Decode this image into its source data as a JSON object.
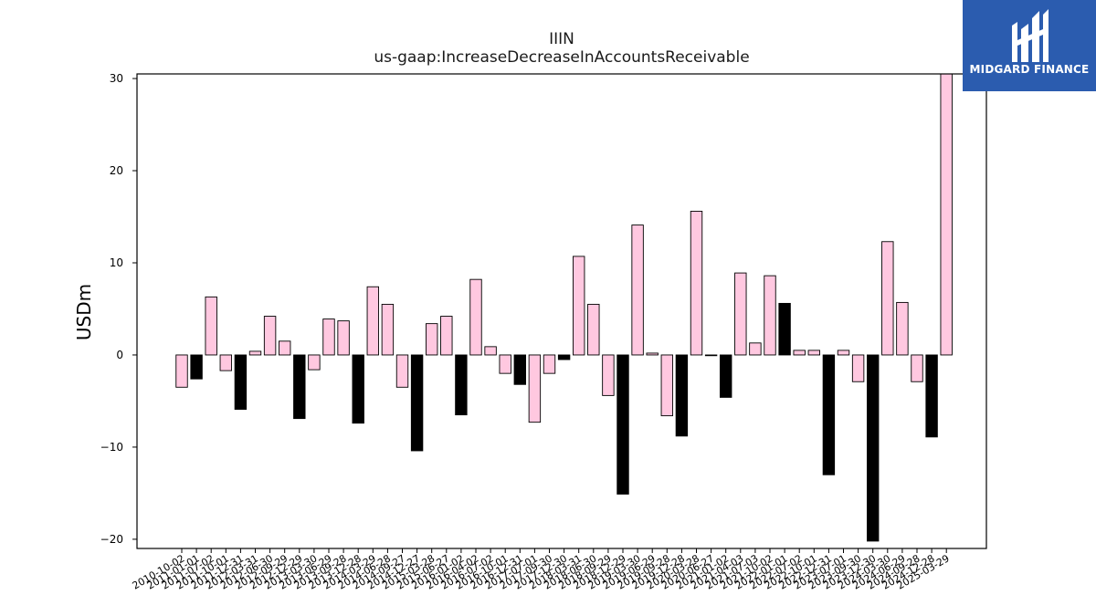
{
  "chart_data": {
    "type": "bar",
    "title": "IIIN",
    "subtitle": "us-gaap:IncreaseDecreaseInAccountsReceivable",
    "xlabel": "",
    "ylabel": "USDm",
    "ylim": [
      -21,
      30.5
    ],
    "yticks": [
      -20,
      -10,
      0,
      10,
      20,
      30
    ],
    "ytick_labels": [
      "−20",
      "−10",
      "0",
      "10",
      "20",
      "30"
    ],
    "grid": false,
    "colors": {
      "positive_quarter": "#ffc8e0",
      "negative_or_q4": "#000000",
      "edge": "#000000"
    },
    "categories": [
      "2010-10-02",
      "2011-01-01",
      "2011-07-02",
      "2011-10-01",
      "2011-12-31",
      "2012-03-31",
      "2012-06-30",
      "2012-09-29",
      "2012-12-29",
      "2013-03-30",
      "2013-06-29",
      "2013-09-28",
      "2013-12-28",
      "2014-03-29",
      "2014-06-28",
      "2014-09-27",
      "2014-12-27",
      "2015-03-28",
      "2015-06-27",
      "2016-01-02",
      "2016-04-02",
      "2016-07-02",
      "2016-10-01",
      "2016-12-31",
      "2017-07-01",
      "2017-09-30",
      "2017-12-30",
      "2018-03-31",
      "2018-06-30",
      "2018-09-29",
      "2018-12-29",
      "2019-03-30",
      "2019-06-29",
      "2019-09-28",
      "2019-12-28",
      "2020-03-28",
      "2020-06-27",
      "2021-01-02",
      "2021-04-03",
      "2021-07-03",
      "2021-10-02",
      "2022-01-01",
      "2022-07-02",
      "2022-10-01",
      "2022-12-31",
      "2023-07-01",
      "2023-09-30",
      "2023-12-30",
      "2024-03-30",
      "2024-06-29",
      "2024-09-28",
      "2024-12-28",
      "2025-03-29"
    ],
    "values": [
      -3.5,
      -2.6,
      6.3,
      -1.7,
      -5.9,
      0.4,
      4.2,
      1.5,
      -6.9,
      -1.6,
      3.9,
      3.7,
      -7.4,
      7.4,
      5.5,
      -3.5,
      -10.4,
      3.4,
      4.2,
      -6.5,
      8.2,
      0.9,
      -2.0,
      -3.2,
      -7.3,
      -2.0,
      -0.5,
      10.7,
      5.5,
      -4.4,
      -15.1,
      14.1,
      0.2,
      -6.6,
      -8.8,
      15.6,
      0.0,
      -4.6,
      8.9,
      1.3,
      8.6,
      5.6,
      0.5,
      0.5,
      -13.0,
      0.5,
      -2.9,
      -20.2,
      12.3,
      5.7,
      -2.9,
      -8.9,
      30.5
    ],
    "bar_colors": [
      "pink",
      "black",
      "pink",
      "pink",
      "black",
      "pink",
      "pink",
      "pink",
      "black",
      "pink",
      "pink",
      "pink",
      "black",
      "pink",
      "pink",
      "pink",
      "black",
      "pink",
      "pink",
      "black",
      "pink",
      "pink",
      "pink",
      "black",
      "pink",
      "pink",
      "black",
      "pink",
      "pink",
      "pink",
      "black",
      "pink",
      "pink",
      "pink",
      "black",
      "pink",
      "pink",
      "black",
      "pink",
      "pink",
      "pink",
      "black",
      "pink",
      "pink",
      "black",
      "pink",
      "pink",
      "black",
      "pink",
      "pink",
      "pink",
      "black",
      "pink"
    ]
  },
  "logo": {
    "text": "MIDGARD FINANCE"
  }
}
